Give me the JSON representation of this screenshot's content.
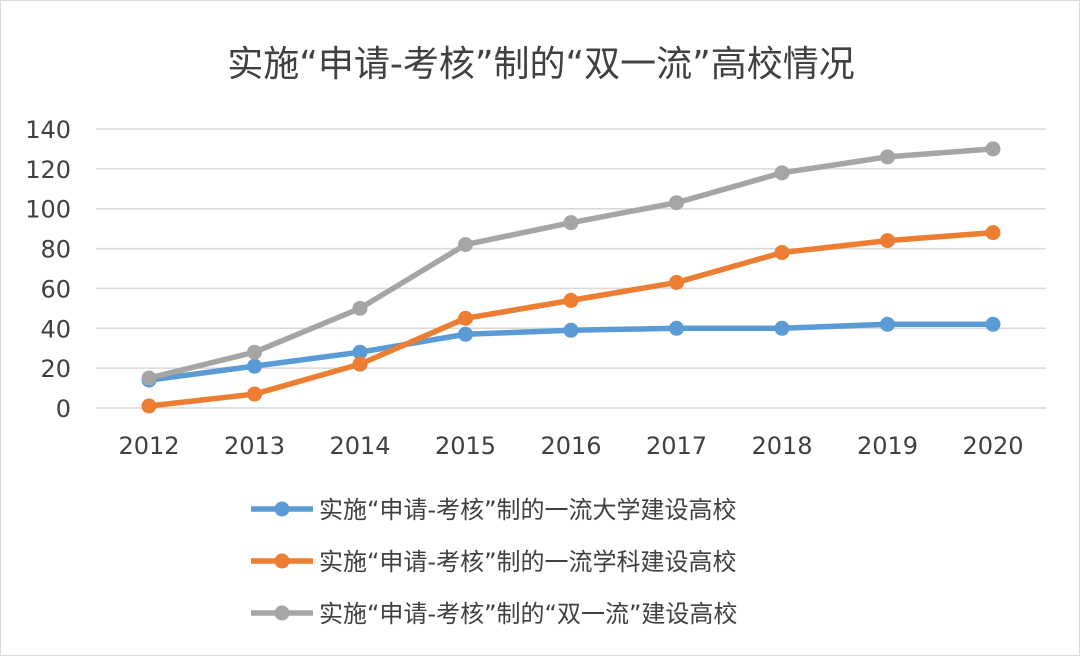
{
  "chart_data": {
    "type": "line",
    "title": "实施“申请-考核”制的“双一流”高校情况",
    "xlabel": "",
    "ylabel": "",
    "categories": [
      "2012",
      "2013",
      "2014",
      "2015",
      "2016",
      "2017",
      "2018",
      "2019",
      "2020"
    ],
    "ylim": [
      0,
      140
    ],
    "yticks": [
      0,
      20,
      40,
      60,
      80,
      100,
      120,
      140
    ],
    "grid": true,
    "legend_position": "bottom",
    "series": [
      {
        "name": "实施“申请-考核”制的一流大学建设高校",
        "color": "#5b9bd5",
        "values": [
          14,
          21,
          28,
          37,
          39,
          40,
          40,
          42,
          42
        ]
      },
      {
        "name": "实施“申请-考核”制的一流学科建设高校",
        "color": "#ed7d31",
        "values": [
          1,
          7,
          22,
          45,
          54,
          63,
          78,
          84,
          88
        ]
      },
      {
        "name": "实施“申请-考核”制的“双一流”建设高校",
        "color": "#a5a5a5",
        "values": [
          15,
          28,
          50,
          82,
          93,
          103,
          118,
          126,
          130
        ]
      }
    ]
  }
}
